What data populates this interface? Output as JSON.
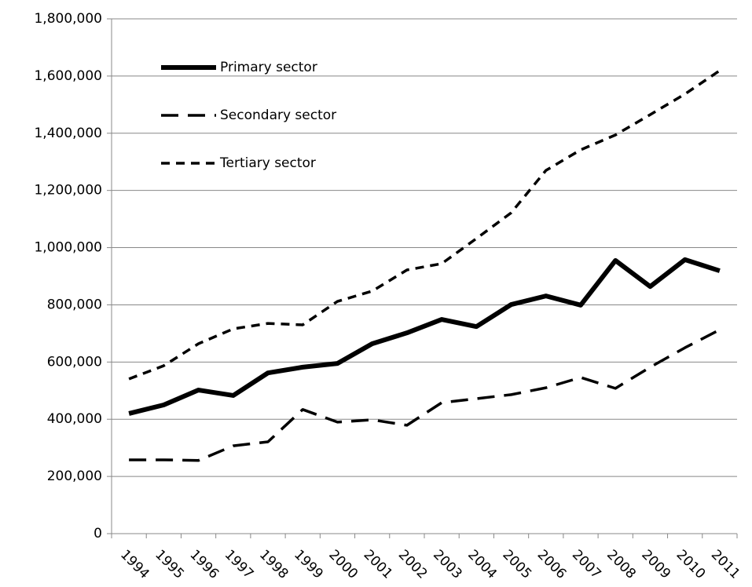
{
  "chart_data": {
    "type": "line",
    "categories": [
      "1994",
      "1995",
      "1996",
      "1997",
      "1998",
      "1999",
      "2000",
      "2001",
      "2002",
      "2003",
      "2004",
      "2005",
      "2006",
      "2007",
      "2008",
      "2009",
      "2010",
      "2011"
    ],
    "series": [
      {
        "name": "Primary sector",
        "color": "#000000",
        "line_style": "solid",
        "values": [
          420000,
          450000,
          502000,
          483000,
          562000,
          582000,
          595000,
          664000,
          702000,
          749000,
          724000,
          801000,
          831000,
          799000,
          955000,
          864000,
          958000,
          919000
        ]
      },
      {
        "name": "Secondary sector",
        "color": "#000000",
        "line_style": "long-dash",
        "values": [
          258000,
          258000,
          256000,
          307000,
          321000,
          434000,
          390000,
          398000,
          379000,
          458000,
          472000,
          486000,
          510000,
          546000,
          508000,
          582000,
          650000,
          713000
        ]
      },
      {
        "name": "Tertiary sector",
        "color": "#000000",
        "line_style": "short-dash",
        "values": [
          541000,
          587000,
          664000,
          716000,
          735000,
          730000,
          812000,
          848000,
          922000,
          944000,
          1032000,
          1122000,
          1270000,
          1342000,
          1394000,
          1465000,
          1537000,
          1619000
        ]
      }
    ],
    "ylim": [
      0,
      1800000
    ],
    "yticks": [
      0,
      {
        "value": 200000,
        "label": "200,000"
      },
      {
        "value": 400000,
        "label": "400,000"
      },
      {
        "value": 600000,
        "label": "600,000"
      },
      {
        "value": 800000,
        "label": "800,000"
      },
      {
        "value": 1000000,
        "label": "1,000,000"
      },
      {
        "value": 1200000,
        "label": "1,200,000"
      },
      {
        "value": 1400000,
        "label": "1,400,000"
      },
      {
        "value": 1600000,
        "label": "1,600,000"
      },
      {
        "value": 1800000,
        "label": "1,800,000"
      }
    ],
    "grid": true,
    "legend": "top-left"
  }
}
